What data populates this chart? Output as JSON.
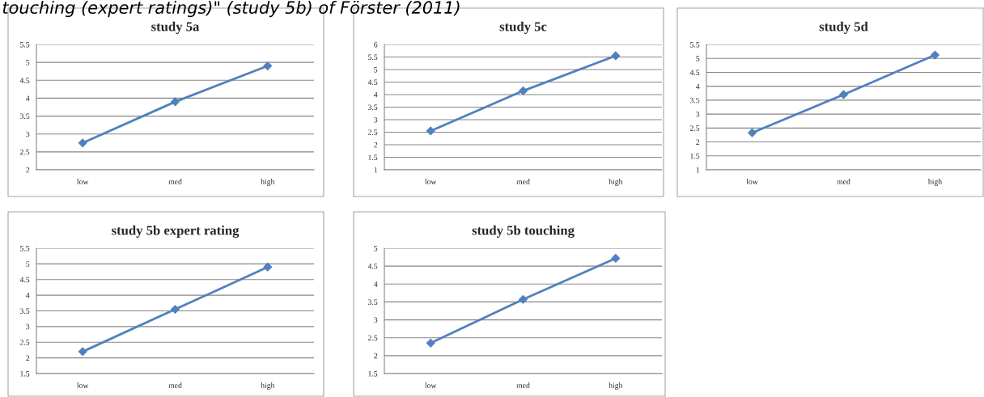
{
  "chart_data": [
    {
      "type": "line",
      "title": "study 5a",
      "annotations": [
        "touching (expert ratings)\" (study 5b) of Förster (2011)"
      ],
      "categories": [
        "low",
        "med",
        "high"
      ],
      "series": [
        {
          "color": "#4f81bd",
          "values": [
            2.75,
            3.9,
            4.9
          ]
        }
      ],
      "ylim": [
        2,
        5.5
      ],
      "yticks": [
        2,
        {
          "value": 2.5,
          "label": "2.5"
        },
        3,
        {
          "value": 3.5,
          "label": "3.5"
        },
        4,
        {
          "value": 4.5,
          "label": "4.5"
        },
        5,
        {
          "value": 5.5,
          "label": "5.5"
        }
      ],
      "grid": "y",
      "marker": "diamond",
      "legend": false
    },
    {
      "type": "line",
      "title": "study 5c",
      "categories": [
        "low",
        "med",
        "high"
      ],
      "series": [
        {
          "color": "#4f81bd",
          "values": [
            2.55,
            4.15,
            5.55
          ]
        }
      ],
      "ylim": [
        1,
        6
      ],
      "yticks": [
        1,
        1.5,
        2,
        2.5,
        3,
        3.5,
        4,
        4.5,
        5,
        5.5,
        6
      ],
      "grid": "y",
      "marker": "diamond",
      "legend": false
    },
    {
      "type": "line",
      "title": "study 5d",
      "categories": [
        "low",
        "med",
        "high"
      ],
      "series": [
        {
          "color": "#4f81bd",
          "values": [
            2.33,
            3.7,
            5.12
          ]
        }
      ],
      "ylim": [
        1,
        5.5
      ],
      "yticks": [
        1,
        1.5,
        2,
        2.5,
        3,
        3.5,
        4,
        4.5,
        5,
        5.5
      ],
      "grid": "y",
      "marker": "diamond",
      "legend": false
    },
    {
      "type": "line",
      "title": "study 5b expert rating",
      "categories": [
        "low",
        "med",
        "high"
      ],
      "series": [
        {
          "color": "#4f81bd",
          "values": [
            2.2,
            3.55,
            4.9
          ]
        }
      ],
      "ylim": [
        1.5,
        5.5
      ],
      "yticks": [
        1.5,
        2,
        2.5,
        3,
        3.5,
        4,
        4.5,
        5,
        5.5
      ],
      "grid": "y",
      "marker": "diamond",
      "legend": false
    },
    {
      "type": "line",
      "title": "study 5b touching",
      "categories": [
        "low",
        "med",
        "high"
      ],
      "series": [
        {
          "color": "#4f81bd",
          "values": [
            2.35,
            3.57,
            4.72
          ]
        }
      ],
      "ylim": [
        1.5,
        5
      ],
      "yticks": [
        1.5,
        2,
        2.5,
        3,
        3.5,
        4,
        4.5,
        5
      ],
      "grid": "y",
      "marker": "diamond",
      "legend": false
    }
  ]
}
